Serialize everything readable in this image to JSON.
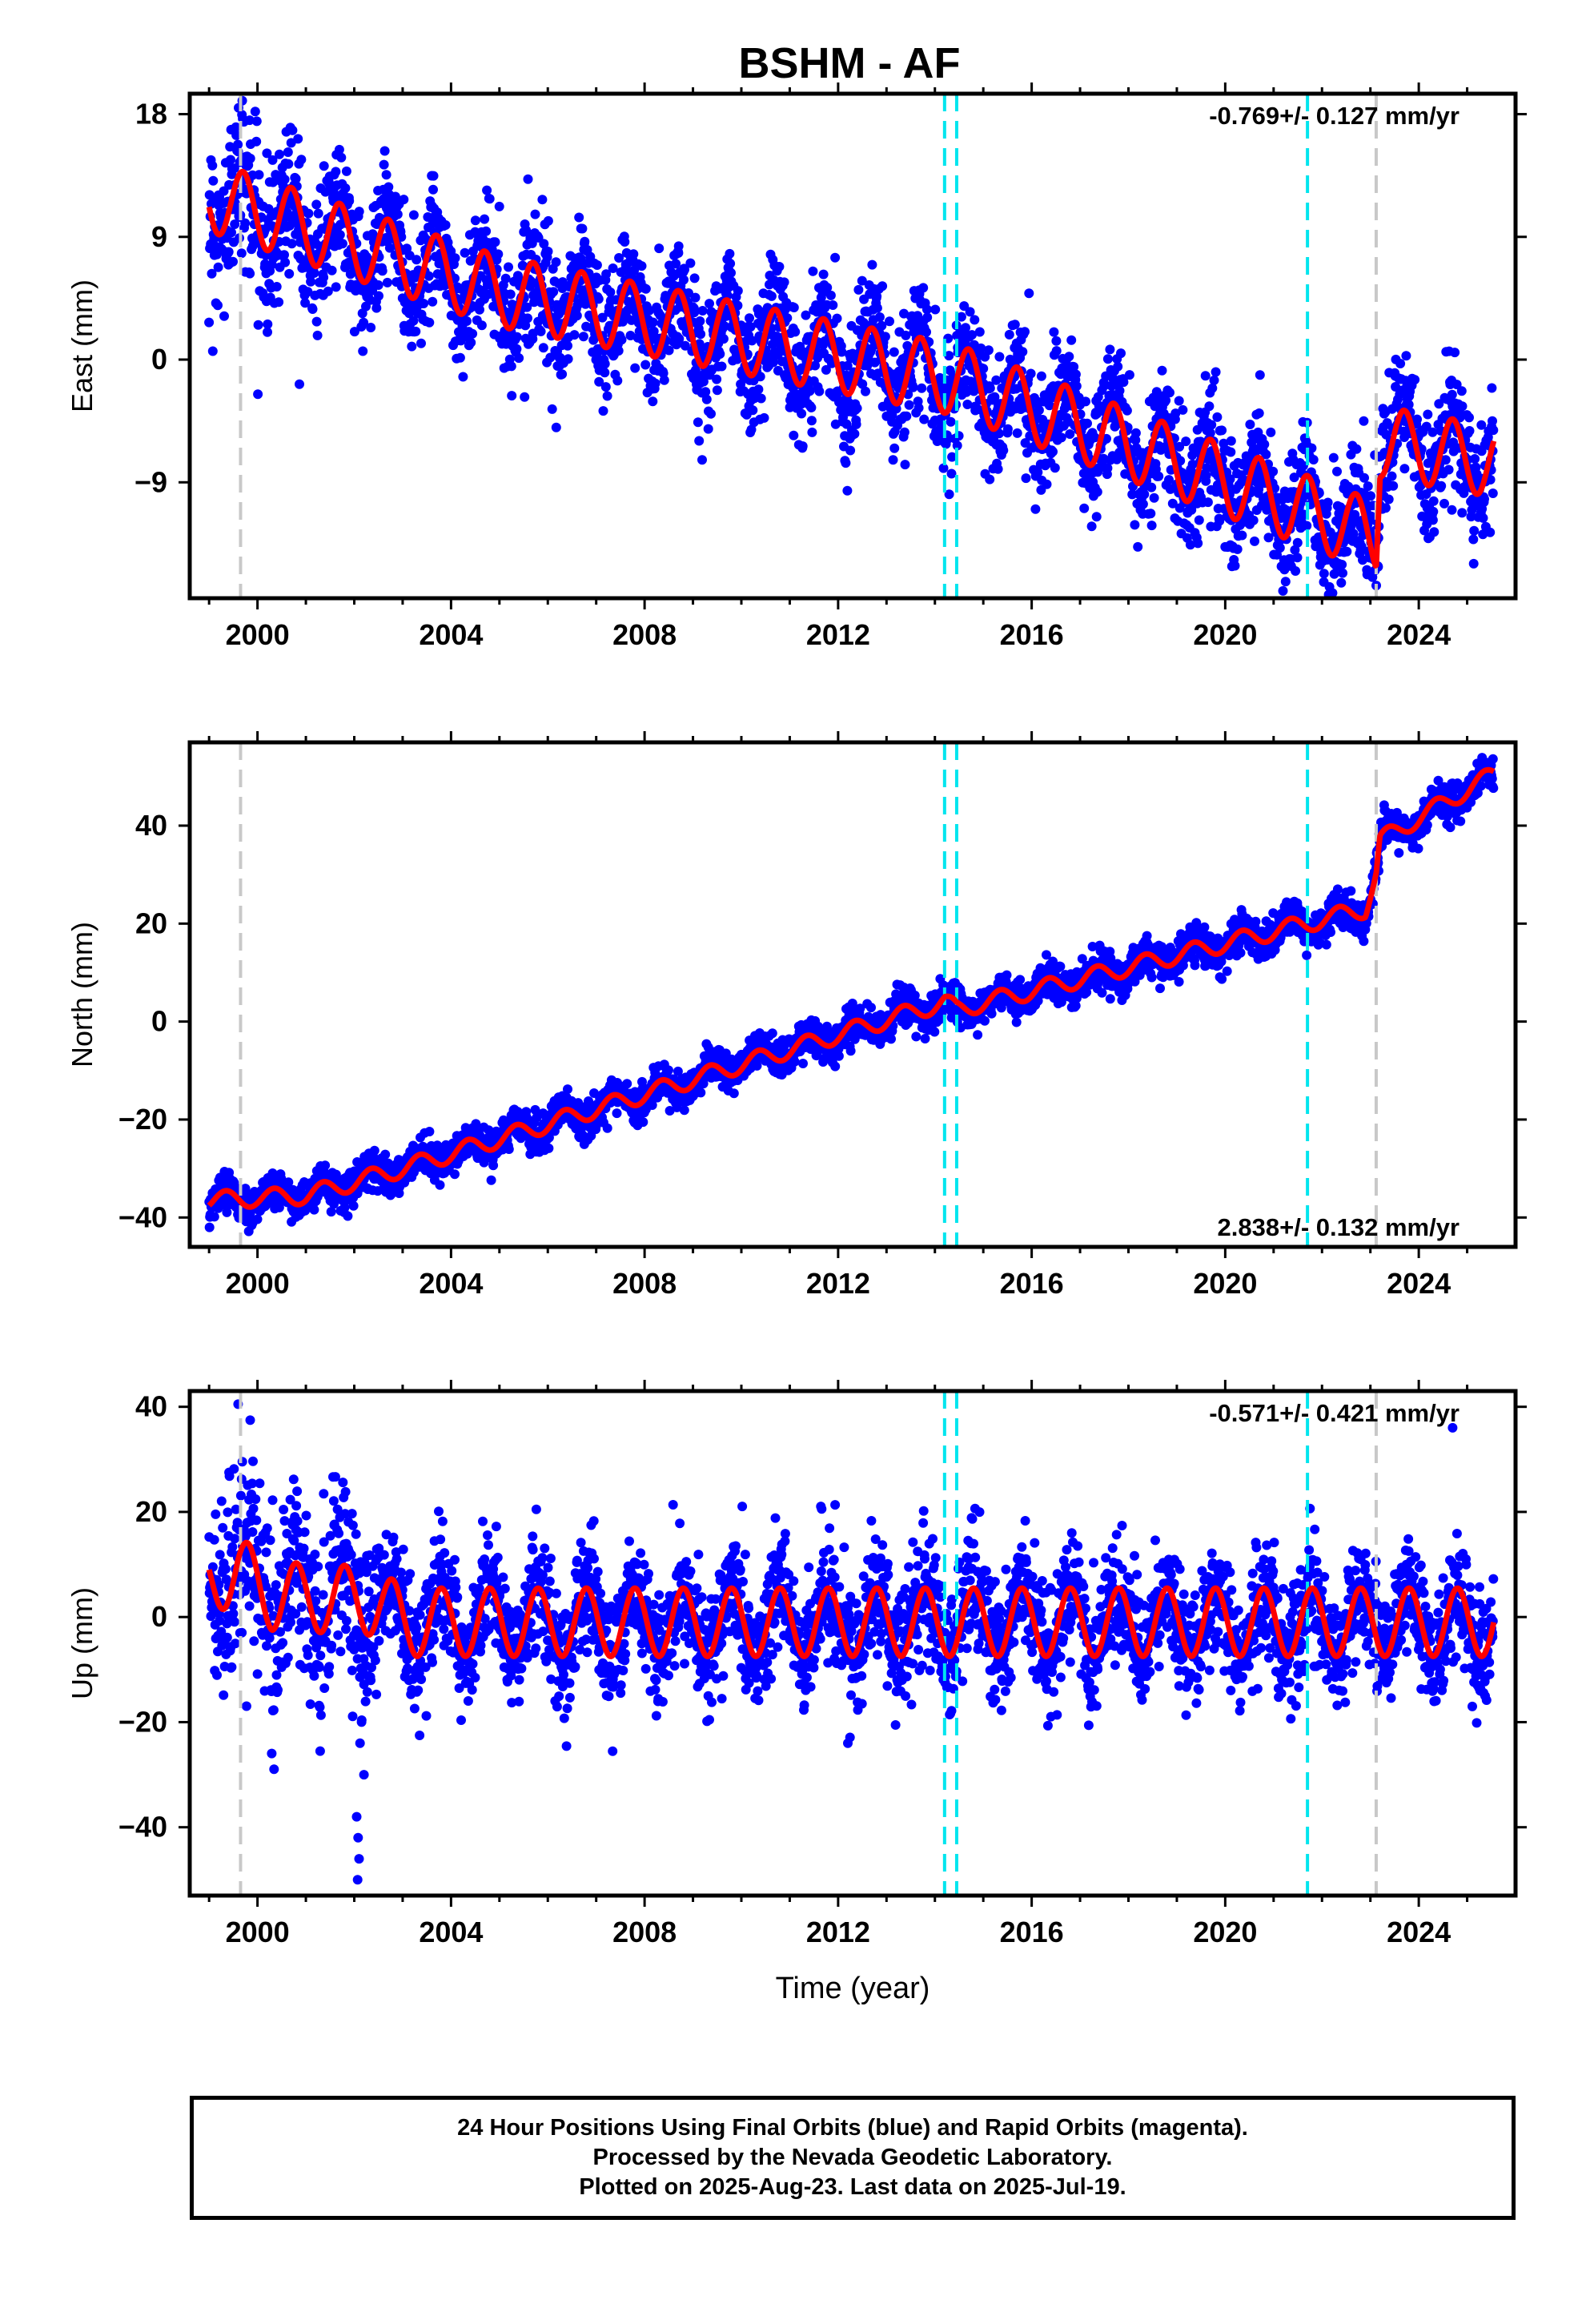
{
  "title": "BSHM - AF",
  "colors": {
    "final_orbits": "#0000ff",
    "model_fit": "#ff0000",
    "offset_equipment": "#00e5ee",
    "offset_other": "#c8c8c8"
  },
  "chart_data": [
    {
      "type": "scatter",
      "component": "East",
      "ylabel": "East (mm)",
      "xlabel": "",
      "xlim": [
        1998.6,
        2026.0
      ],
      "ylim": [
        -17.5,
        19.5
      ],
      "xticks": [
        "2000",
        "2004",
        "2008",
        "2012",
        "2016",
        "2020",
        "2024"
      ],
      "xtick_values": [
        2000,
        2004,
        2008,
        2012,
        2016,
        2020,
        2024
      ],
      "yticks": [
        "−9",
        "0",
        "9",
        "18"
      ],
      "ytick_values": [
        -9,
        0,
        9,
        18
      ],
      "annotation": "-0.769+/- 0.127 mm/yr",
      "annotation_position": "top-right",
      "offset_lines_cyan": [
        2014.2,
        2014.45,
        2021.7
      ],
      "offset_lines_gray": [
        1999.65,
        2023.12
      ],
      "series": [
        {
          "role": "daily-positions",
          "scatter_sd": 2.2,
          "model": {
            "start": 1999.0,
            "end": 2025.55,
            "mean_at_2012": -0.5,
            "rate_mm_per_yr": -0.769,
            "breakpoints": [
              [
                1999.0,
                12.0
              ],
              [
                2005.0,
                5.0
              ],
              [
                2014.45,
                -1.5
              ],
              [
                2023.12,
                -13.0
              ],
              [
                2023.2,
                -6.0
              ],
              [
                2025.55,
                -7.5
              ]
            ],
            "annual_amplitude": 2.6,
            "annual_phase_year": 0.45
          }
        }
      ]
    },
    {
      "type": "scatter",
      "component": "North",
      "ylabel": "North (mm)",
      "xlabel": "",
      "xlim": [
        1998.6,
        2026.0
      ],
      "ylim": [
        -46,
        57
      ],
      "xticks": [
        "2000",
        "2004",
        "2008",
        "2012",
        "2016",
        "2020",
        "2024"
      ],
      "xtick_values": [
        2000,
        2004,
        2008,
        2012,
        2016,
        2020,
        2024
      ],
      "yticks": [
        "−40",
        "−20",
        "0",
        "20",
        "40"
      ],
      "ytick_values": [
        -40,
        -20,
        0,
        20,
        40
      ],
      "annotation": "2.838+/- 0.132 mm/yr",
      "annotation_position": "bottom-right",
      "offset_lines_cyan": [
        2014.2,
        2014.45,
        2021.7
      ],
      "offset_lines_gray": [
        1999.65,
        2023.12
      ],
      "series": [
        {
          "role": "daily-positions",
          "scatter_sd": 1.8,
          "model": {
            "breakpoints": [
              [
                1999.0,
                -36.5
              ],
              [
                2001.0,
                -35.5
              ],
              [
                2003.0,
                -30.0
              ],
              [
                2014.2,
                4.0
              ],
              [
                2014.45,
                2.5
              ],
              [
                2022.9,
                23.0
              ],
              [
                2023.12,
                30.0
              ],
              [
                2023.2,
                37.0
              ],
              [
                2025.55,
                50.5
              ]
            ],
            "annual_amplitude": 1.8,
            "annual_phase_year": 0.1
          }
        }
      ]
    },
    {
      "type": "scatter",
      "component": "Up",
      "ylabel": "Up (mm)",
      "xlabel": "Time (year)",
      "xlim": [
        1998.6,
        2026.0
      ],
      "ylim": [
        -53,
        43
      ],
      "xticks": [
        "2000",
        "2004",
        "2008",
        "2012",
        "2016",
        "2020",
        "2024"
      ],
      "xtick_values": [
        2000,
        2004,
        2008,
        2012,
        2016,
        2020,
        2024
      ],
      "yticks": [
        "−40",
        "−20",
        "0",
        "20",
        "40"
      ],
      "ytick_values": [
        -40,
        -20,
        0,
        20,
        40
      ],
      "annotation": "-0.571+/- 0.421 mm/yr",
      "annotation_position": "top-right",
      "offset_lines_cyan": [
        2014.2,
        2014.45,
        2021.7
      ],
      "offset_lines_gray": [
        1999.65,
        2023.12
      ],
      "series": [
        {
          "role": "daily-positions",
          "scatter_sd": 5.5,
          "model": {
            "breakpoints": [
              [
                1999.0,
                7.0
              ],
              [
                1999.6,
                9.0
              ],
              [
                2000.3,
                4.0
              ],
              [
                2002.5,
                3.0
              ],
              [
                2003.0,
                -1.0
              ],
              [
                2025.55,
                -1.0
              ]
            ],
            "annual_amplitude": 6.5,
            "annual_phase_year": 0.55
          },
          "outliers": [
            [
              2002.05,
              -38
            ],
            [
              2002.08,
              -42
            ],
            [
              2002.1,
              -46
            ],
            [
              2002.07,
              -50
            ],
            [
              2002.15,
              -20
            ],
            [
              2002.12,
              -24
            ],
            [
              2002.2,
              -30
            ],
            [
              2012.2,
              -24
            ],
            [
              2024.7,
              36
            ],
            [
              1999.6,
              40.5
            ]
          ]
        }
      ]
    }
  ],
  "footer": {
    "line1": "24 Hour Positions Using Final Orbits (blue) and Rapid Orbits (magenta).",
    "line2": "Processed by the Nevada Geodetic Laboratory.",
    "line3": "Plotted on 2025-Aug-23. Last data on 2025-Jul-19."
  }
}
